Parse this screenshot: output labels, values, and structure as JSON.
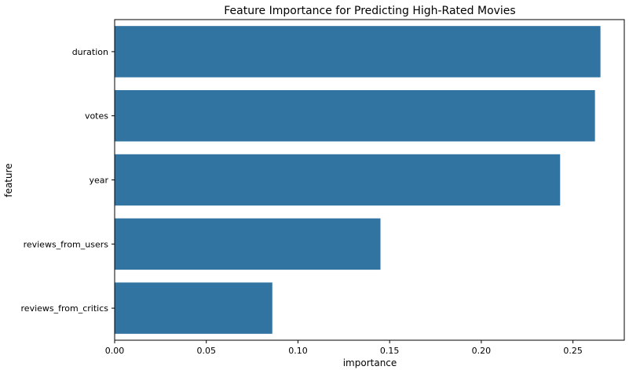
{
  "chart_data": {
    "type": "bar",
    "orientation": "horizontal",
    "title": "Feature Importance for Predicting High-Rated Movies",
    "xlabel": "importance",
    "ylabel": "feature",
    "categories": [
      "duration",
      "votes",
      "year",
      "reviews_from_users",
      "reviews_from_critics"
    ],
    "values": [
      0.265,
      0.262,
      0.243,
      0.145,
      0.086
    ],
    "xlim": [
      0,
      0.278
    ],
    "xticks": [
      0.0,
      0.05,
      0.1,
      0.15,
      0.2,
      0.25
    ],
    "xtick_labels": [
      "0.00",
      "0.05",
      "0.10",
      "0.15",
      "0.20",
      "0.25"
    ],
    "bar_color": "#3274a1",
    "grid": false,
    "legend": "none"
  }
}
